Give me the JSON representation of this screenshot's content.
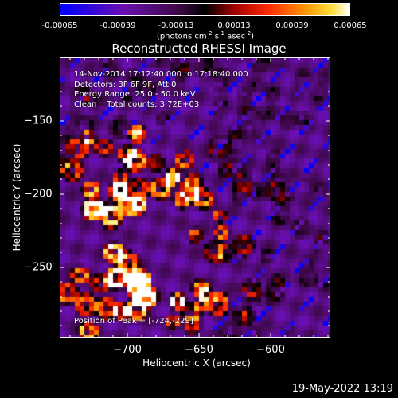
{
  "colorbar": {
    "ticks": [
      "-0.00065",
      "-0.00039",
      "-0.00013",
      "0.00013",
      "0.00039",
      "0.00065"
    ],
    "units_prefix": "(photons cm",
    "units_exp1": "-2",
    "units_mid": " s",
    "units_exp2": "-1",
    "units_mid2": " asec",
    "units_exp3": "-2",
    "units_suffix": ")"
  },
  "title": "Reconstructed RHESSI Image",
  "info": {
    "line1": "14-Nov-2014 17:12:40.000 to 17:18:40.000",
    "line2": "Detectors: 3F 6F 9F, Att 0",
    "line3": "Energy Range: 25.0 - 50.0 keV",
    "line4": "Clean    Total counts: 3.72E+03"
  },
  "peak_label": "Position of Peak = [-724,-229]",
  "footer": "19-May-2022 13:19",
  "chart_data": {
    "type": "heatmap",
    "title": "Reconstructed RHESSI Image",
    "xlabel": "Heliocentric X (arcsec)",
    "ylabel": "Heliocentric Y (arcsec)",
    "x_ticks": [
      -700,
      -650,
      -600
    ],
    "y_ticks": [
      -150,
      -200,
      -250
    ],
    "xlim": [
      -748,
      -578
    ],
    "ylim": [
      -290,
      -114
    ],
    "colorbar_range": [
      -0.00065,
      0.00065
    ],
    "peak": [
      -724,
      -229
    ]
  },
  "colors": {
    "background": "#000000",
    "colormap": [
      "#0000ff",
      "#6a0fa8",
      "#3a0f5a",
      "#000000",
      "#8a0000",
      "#ff2000",
      "#ff8000",
      "#ffd000",
      "#ffffff"
    ]
  }
}
